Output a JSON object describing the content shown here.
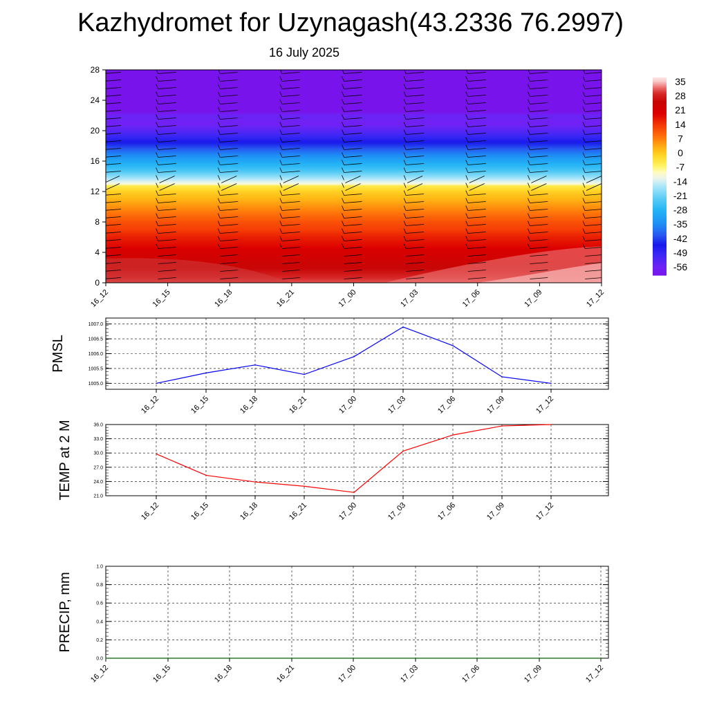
{
  "title": "Kazhydromet for Uzynagash(43.2336 76.2997)",
  "subtitle": "16 July 2025",
  "colors": {
    "pmsl_line": "#0000ff",
    "temp_line": "#ff0000",
    "precip_line": "#006400",
    "grid": "#000000"
  },
  "chart_data": [
    {
      "type": "heatmap",
      "title": "",
      "xlabel": "",
      "ylabel": "",
      "x_categories": [
        "16_12",
        "16_15",
        "16_18",
        "16_21",
        "17_00",
        "17_03",
        "17_06",
        "17_09",
        "17_12"
      ],
      "y_ticks": [
        0,
        4,
        8,
        12,
        16,
        20,
        24,
        28
      ],
      "ylim": [
        0,
        28
      ],
      "colorbar": {
        "labels": [
          "35",
          "28",
          "21",
          "14",
          "7",
          "0",
          "-7",
          "-14",
          "-21",
          "-28",
          "-35",
          "-42",
          "-49",
          "-56"
        ],
        "range": [
          -60,
          38
        ]
      },
      "profile": [
        {
          "z": 0,
          "t": 32
        },
        {
          "z": 1,
          "t": 29
        },
        {
          "z": 2,
          "t": 26
        },
        {
          "z": 3,
          "t": 24
        },
        {
          "z": 4,
          "t": 22
        },
        {
          "z": 5,
          "t": 19
        },
        {
          "z": 6,
          "t": 17
        },
        {
          "z": 7,
          "t": 14
        },
        {
          "z": 8,
          "t": 12
        },
        {
          "z": 9,
          "t": 9
        },
        {
          "z": 10,
          "t": 6
        },
        {
          "z": 11,
          "t": 3
        },
        {
          "z": 12,
          "t": 0
        },
        {
          "z": 12.8,
          "t": -4
        },
        {
          "z": 13,
          "t": -10
        },
        {
          "z": 14,
          "t": -18
        },
        {
          "z": 15,
          "t": -25
        },
        {
          "z": 16,
          "t": -30
        },
        {
          "z": 17,
          "t": -36
        },
        {
          "z": 18,
          "t": -42
        },
        {
          "z": 19,
          "t": -48
        },
        {
          "z": 20,
          "t": -53
        },
        {
          "z": 21,
          "t": -57
        },
        {
          "z": 22,
          "t": -55
        },
        {
          "z": 22.5,
          "t": -60
        },
        {
          "z": 28,
          "t": -60
        }
      ],
      "grid": false,
      "wind_barbs": true
    },
    {
      "type": "line",
      "title": "",
      "xlabel": "",
      "ylabel": "PMSL",
      "categories": [
        "16_12",
        "16_15",
        "16_18",
        "16_21",
        "17_00",
        "17_03",
        "17_06",
        "17_09",
        "17_12"
      ],
      "values": [
        1005.0,
        1005.35,
        1005.62,
        1005.3,
        1005.9,
        1006.9,
        1006.27,
        1005.22,
        1005.0
      ],
      "y_ticks": [
        "1005.0",
        "1005.5",
        "1006.0",
        "1006.5",
        "1007.0"
      ],
      "ylim": [
        1004.8,
        1007.2
      ],
      "grid": true
    },
    {
      "type": "line",
      "title": "",
      "xlabel": "",
      "ylabel": "TEMP at 2 M",
      "categories": [
        "16_12",
        "16_15",
        "16_18",
        "16_21",
        "17_00",
        "17_03",
        "17_06",
        "17_09",
        "17_12"
      ],
      "values": [
        29.8,
        25.3,
        23.9,
        23.0,
        21.7,
        30.4,
        33.8,
        35.7,
        36.0
      ],
      "y_ticks": [
        "21.0",
        "24.0",
        "27.0",
        "30.0",
        "33.0",
        "36.0"
      ],
      "ylim": [
        21.0,
        36.0
      ],
      "grid": true
    },
    {
      "type": "line",
      "title": "",
      "xlabel": "",
      "ylabel": "PRECIP, mm",
      "categories": [
        "16_12",
        "16_15",
        "16_18",
        "16_21",
        "17_00",
        "17_03",
        "17_06",
        "17_09",
        "17_12"
      ],
      "values": [
        0,
        0,
        0,
        0,
        0,
        0,
        0,
        0,
        0
      ],
      "y_ticks": [
        "0.0",
        "0.2",
        "0.4",
        "0.6",
        "0.8",
        "1.0"
      ],
      "ylim": [
        0.0,
        1.0
      ],
      "grid": true
    }
  ]
}
